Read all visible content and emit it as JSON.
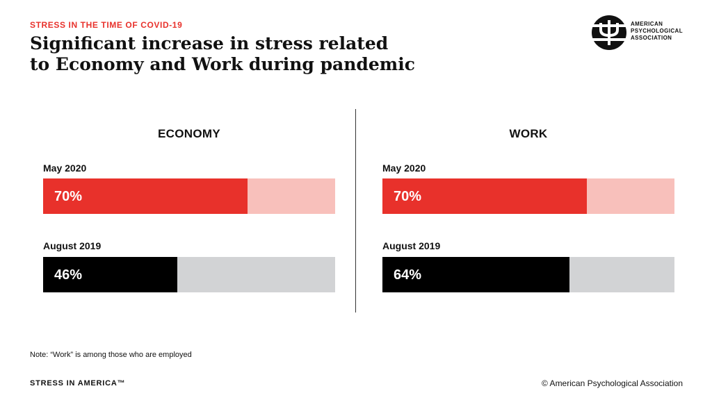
{
  "header": {
    "kicker": "STRESS IN THE TIME OF COVID-19",
    "title_line1": "Significant increase in stress related",
    "title_line2": "to Economy and Work during pandemic"
  },
  "logo": {
    "icon": "apa-psi-logo-icon",
    "line1": "AMERICAN",
    "line2": "PSYCHOLOGICAL",
    "line3": "ASSOCIATION"
  },
  "colors": {
    "accent_red": "#e8312b",
    "light_red": "#f8c0bb",
    "black": "#000000",
    "light_gray": "#d2d3d5"
  },
  "chart_data": [
    {
      "type": "bar",
      "title": "ECONOMY",
      "categories": [
        "May 2020",
        "August 2019"
      ],
      "values": [
        70,
        46
      ],
      "value_labels": [
        "70%",
        "46%"
      ],
      "ylim": [
        0,
        100
      ]
    },
    {
      "type": "bar",
      "title": "WORK",
      "categories": [
        "May 2020",
        "August 2019"
      ],
      "values": [
        70,
        64
      ],
      "value_labels": [
        "70%",
        "64%"
      ],
      "ylim": [
        0,
        100
      ]
    }
  ],
  "footer": {
    "note": "Note: “Work” is among those who are employed",
    "left": "STRESS IN AMERICA™",
    "right": "© American Psychological Association"
  }
}
